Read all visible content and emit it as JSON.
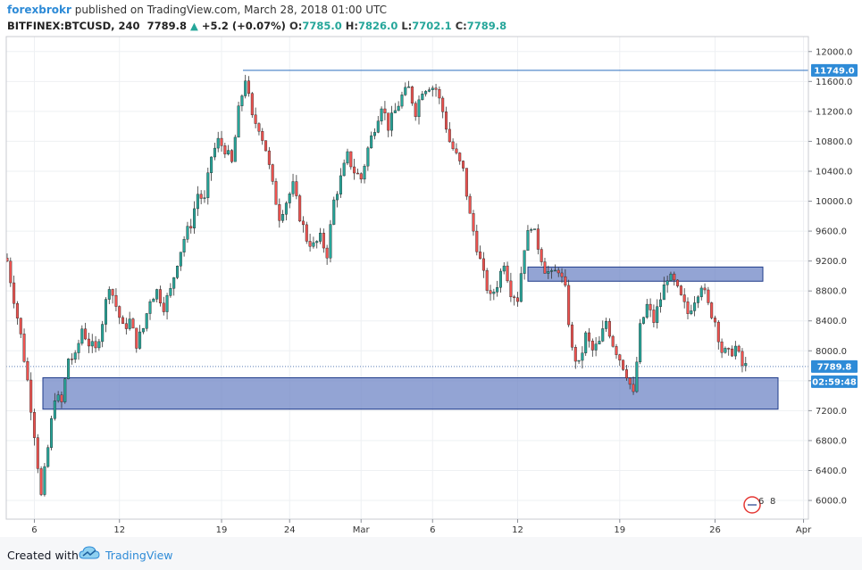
{
  "header": {
    "author": "forexbrokr",
    "published_text": "published on TradingView.com, March 28, 2018 01:00 UTC",
    "symbol": "BITFINEX:BTCUSD, 240",
    "last": "7789.8",
    "change": "+5.2 (+0.07%)",
    "ohlc": [
      {
        "label": "O:",
        "value": "7785.0"
      },
      {
        "label": "H:",
        "value": "7826.0"
      },
      {
        "label": "L:",
        "value": "7702.1"
      },
      {
        "label": "C:",
        "value": "7789.8"
      }
    ]
  },
  "footer": {
    "created_with": "Created with",
    "brand": "TradingView"
  },
  "badge_numbers": [
    "6",
    "8"
  ],
  "colors": {
    "up": "#26a69a",
    "down": "#ef5350",
    "zone_fill": "#6f86c6",
    "zone_stroke": "#1f3b8a",
    "price_tag": "#2e8bd7",
    "resistance_line": "#2e6fbf"
  },
  "chart_data": {
    "type": "candlestick",
    "ylim": [
      5750,
      12200
    ],
    "x_tick_labels": [
      "6",
      "12",
      "19",
      "24",
      "Mar",
      "6",
      "12",
      "19",
      "26",
      "Apr"
    ],
    "y_tick_labels": [
      "6000.0",
      "6400.0",
      "6800.0",
      "7200.0",
      "7600.0",
      "8000.0",
      "8400.0",
      "8800.0",
      "9200.0",
      "9600.0",
      "10000.0",
      "10400.0",
      "10800.0",
      "11200.0",
      "11600.0",
      "12000.0"
    ],
    "y_ticks": [
      6000,
      6400,
      6800,
      7200,
      7600,
      8000,
      8400,
      8800,
      9200,
      9600,
      10000,
      10400,
      10800,
      11200,
      11600,
      12000
    ],
    "horizontal_line": {
      "value": 11749.0,
      "label": "11749.0"
    },
    "last_price": {
      "value": 7789.8,
      "label": "7789.8"
    },
    "countdown": "02:59:48",
    "zones": [
      {
        "name": "support",
        "from": 7220,
        "to": 7640
      },
      {
        "name": "resistance",
        "from": 8930,
        "to": 9120
      }
    ],
    "close_path": [
      [
        0,
        9200
      ],
      [
        2,
        8700
      ],
      [
        4,
        8200
      ],
      [
        6,
        7600
      ],
      [
        8,
        6900
      ],
      [
        10,
        6050
      ],
      [
        12,
        6700
      ],
      [
        14,
        7400
      ],
      [
        16,
        7300
      ],
      [
        18,
        7900
      ],
      [
        20,
        7900
      ],
      [
        22,
        8300
      ],
      [
        24,
        8100
      ],
      [
        26,
        8000
      ],
      [
        28,
        8400
      ],
      [
        30,
        8900
      ],
      [
        32,
        8600
      ],
      [
        34,
        8300
      ],
      [
        36,
        8400
      ],
      [
        38,
        8100
      ],
      [
        40,
        8300
      ],
      [
        42,
        8700
      ],
      [
        44,
        8800
      ],
      [
        46,
        8600
      ],
      [
        48,
        8800
      ],
      [
        50,
        9200
      ],
      [
        52,
        9500
      ],
      [
        54,
        9700
      ],
      [
        56,
        10100
      ],
      [
        58,
        10000
      ],
      [
        60,
        10600
      ],
      [
        62,
        10800
      ],
      [
        64,
        10700
      ],
      [
        66,
        10500
      ],
      [
        68,
        11200
      ],
      [
        70,
        11650
      ],
      [
        72,
        11100
      ],
      [
        74,
        11000
      ],
      [
        76,
        10700
      ],
      [
        78,
        10200
      ],
      [
        80,
        9800
      ],
      [
        82,
        10000
      ],
      [
        84,
        10200
      ],
      [
        86,
        9800
      ],
      [
        88,
        9500
      ],
      [
        90,
        9400
      ],
      [
        92,
        9500
      ],
      [
        94,
        9300
      ],
      [
        96,
        10000
      ],
      [
        98,
        10300
      ],
      [
        100,
        10600
      ],
      [
        102,
        10400
      ],
      [
        104,
        10300
      ],
      [
        106,
        10700
      ],
      [
        108,
        11000
      ],
      [
        110,
        11300
      ],
      [
        112,
        11000
      ],
      [
        114,
        11200
      ],
      [
        116,
        11400
      ],
      [
        118,
        11500
      ],
      [
        120,
        11200
      ],
      [
        122,
        11500
      ],
      [
        124,
        11550
      ],
      [
        126,
        11500
      ],
      [
        128,
        11200
      ],
      [
        130,
        10800
      ],
      [
        132,
        10600
      ],
      [
        134,
        10400
      ],
      [
        136,
        9800
      ],
      [
        138,
        9400
      ],
      [
        140,
        9000
      ],
      [
        142,
        8700
      ],
      [
        144,
        8900
      ],
      [
        146,
        9200
      ],
      [
        148,
        8800
      ],
      [
        150,
        8700
      ],
      [
        152,
        9400
      ],
      [
        154,
        9700
      ],
      [
        156,
        9400
      ],
      [
        158,
        9100
      ],
      [
        160,
        9000
      ],
      [
        162,
        9100
      ],
      [
        164,
        8800
      ],
      [
        166,
        8000
      ],
      [
        168,
        7800
      ],
      [
        170,
        8200
      ],
      [
        172,
        8000
      ],
      [
        174,
        8100
      ],
      [
        176,
        8400
      ],
      [
        178,
        8100
      ],
      [
        180,
        7900
      ],
      [
        182,
        7700
      ],
      [
        184,
        7400
      ],
      [
        186,
        8300
      ],
      [
        188,
        8600
      ],
      [
        190,
        8400
      ],
      [
        192,
        8700
      ],
      [
        194,
        9000
      ],
      [
        196,
        8900
      ],
      [
        198,
        8700
      ],
      [
        200,
        8500
      ],
      [
        202,
        8700
      ],
      [
        204,
        8900
      ],
      [
        206,
        8600
      ],
      [
        208,
        8400
      ],
      [
        210,
        8000
      ],
      [
        212,
        7950
      ],
      [
        214,
        8050
      ],
      [
        216,
        7800
      ],
      [
        217,
        7790
      ]
    ]
  }
}
